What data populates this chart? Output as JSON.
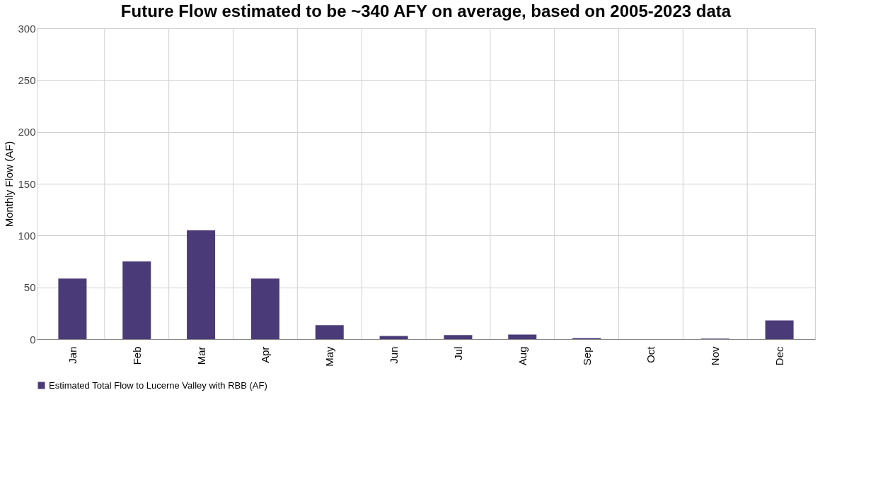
{
  "chart_data": {
    "type": "bar",
    "title": "Future Flow estimated to be ~340 AFY on average, based on 2005-2023 data",
    "ylabel": "Monthly Flow (AF)",
    "categories": [
      "Jan",
      "Feb",
      "Mar",
      "Apr",
      "May",
      "Jun",
      "Jul",
      "Aug",
      "Sep",
      "Oct",
      "Nov",
      "Dec"
    ],
    "series": [
      {
        "name": "Estimated Total Flow to Lucerne Valley with RBB (AF)",
        "color": "#4b3a78",
        "values": [
          58.5,
          75,
          105,
          58.5,
          13.5,
          3,
          4,
          4.5,
          1,
          0,
          0.5,
          18
        ]
      }
    ],
    "ylim": [
      0,
      300
    ],
    "yticks": [
      0,
      50,
      100,
      150,
      200,
      250,
      300
    ],
    "grid": true,
    "legend": "bottom left"
  }
}
